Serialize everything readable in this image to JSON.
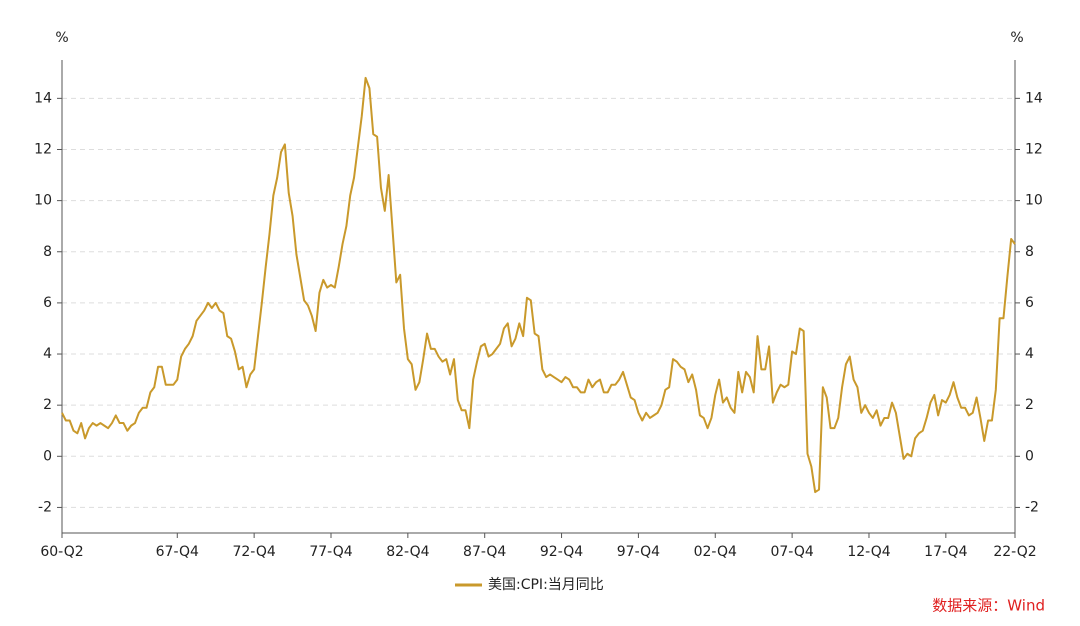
{
  "chart_data": {
    "type": "line",
    "y_unit_label": "%",
    "y2_unit_label": "%",
    "source": "数据来源：Wind",
    "categories": [
      "60-Q2",
      null,
      null,
      null,
      null,
      null,
      null,
      null,
      null,
      null,
      null,
      null,
      null,
      null,
      null,
      null,
      null,
      null,
      null,
      null,
      null,
      null,
      null,
      null,
      null,
      null,
      null,
      null,
      null,
      null,
      "67-Q4",
      null,
      null,
      null,
      null,
      null,
      null,
      null,
      null,
      null,
      null,
      null,
      null,
      null,
      null,
      null,
      null,
      null,
      null,
      null,
      "72-Q4",
      null,
      null,
      null,
      null,
      null,
      null,
      null,
      null,
      null,
      null,
      null,
      null,
      null,
      null,
      null,
      null,
      null,
      null,
      null,
      "77-Q4",
      null,
      null,
      null,
      null,
      null,
      null,
      null,
      null,
      null,
      null,
      null,
      null,
      null,
      null,
      null,
      null,
      null,
      null,
      null,
      "82-Q4",
      null,
      null,
      null,
      null,
      null,
      null,
      null,
      null,
      null,
      null,
      null,
      null,
      null,
      null,
      null,
      null,
      null,
      null,
      null,
      "87-Q4",
      null,
      null,
      null,
      null,
      null,
      null,
      null,
      null,
      null,
      null,
      null,
      null,
      null,
      null,
      null,
      null,
      null,
      null,
      null,
      "92-Q4",
      null,
      null,
      null,
      null,
      null,
      null,
      null,
      null,
      null,
      null,
      null,
      null,
      null,
      null,
      null,
      null,
      null,
      null,
      null,
      "97-Q4",
      null,
      null,
      null,
      null,
      null,
      null,
      null,
      null,
      null,
      null,
      null,
      null,
      null,
      null,
      null,
      null,
      null,
      null,
      null,
      "02-Q4",
      null,
      null,
      null,
      null,
      null,
      null,
      null,
      null,
      null,
      null,
      null,
      null,
      null,
      null,
      null,
      null,
      null,
      null,
      null,
      "07-Q4",
      null,
      null,
      null,
      null,
      null,
      null,
      null,
      null,
      null,
      null,
      null,
      null,
      null,
      null,
      null,
      null,
      null,
      null,
      null,
      "12-Q4",
      null,
      null,
      null,
      null,
      null,
      null,
      null,
      null,
      null,
      null,
      null,
      null,
      null,
      null,
      null,
      null,
      null,
      null,
      null,
      "17-Q4",
      null,
      null,
      null,
      null,
      null,
      null,
      null,
      null,
      null,
      null,
      null,
      null,
      null,
      null,
      null,
      null,
      null,
      "22-Q2"
    ],
    "series": [
      {
        "name": "美国:CPI:当月同比",
        "color": "#c9992b",
        "values": [
          1.7,
          1.4,
          1.4,
          1.0,
          0.9,
          1.3,
          0.7,
          1.1,
          1.3,
          1.2,
          1.3,
          1.2,
          1.1,
          1.3,
          1.6,
          1.3,
          1.3,
          1.0,
          1.2,
          1.3,
          1.7,
          1.9,
          1.9,
          2.5,
          2.7,
          3.5,
          3.5,
          2.8,
          2.8,
          2.8,
          3.0,
          3.9,
          4.2,
          4.4,
          4.7,
          5.3,
          5.5,
          5.7,
          6.0,
          5.8,
          6.0,
          5.7,
          5.6,
          4.7,
          4.6,
          4.1,
          3.4,
          3.5,
          2.7,
          3.2,
          3.4,
          4.7,
          6.0,
          7.4,
          8.7,
          10.2,
          10.9,
          11.9,
          12.2,
          10.3,
          9.4,
          7.9,
          7.0,
          6.1,
          5.9,
          5.5,
          4.9,
          6.4,
          6.9,
          6.6,
          6.7,
          6.6,
          7.4,
          8.3,
          9.0,
          10.2,
          10.9,
          12.1,
          13.3,
          14.8,
          14.4,
          12.6,
          12.5,
          10.5,
          9.6,
          11.0,
          8.9,
          6.8,
          7.1,
          5.0,
          3.8,
          3.6,
          2.6,
          2.9,
          3.8,
          4.8,
          4.2,
          4.2,
          3.9,
          3.7,
          3.8,
          3.2,
          3.8,
          2.2,
          1.8,
          1.8,
          1.1,
          3.0,
          3.7,
          4.3,
          4.4,
          3.9,
          4.0,
          4.2,
          4.4,
          5.0,
          5.2,
          4.3,
          4.6,
          5.2,
          4.7,
          6.2,
          6.1,
          4.8,
          4.7,
          3.4,
          3.1,
          3.2,
          3.1,
          3.0,
          2.9,
          3.1,
          3.0,
          2.7,
          2.7,
          2.5,
          2.5,
          3.0,
          2.7,
          2.9,
          3.0,
          2.5,
          2.5,
          2.8,
          2.8,
          3.0,
          3.3,
          2.8,
          2.3,
          2.2,
          1.7,
          1.4,
          1.7,
          1.5,
          1.6,
          1.7,
          2.0,
          2.6,
          2.7,
          3.8,
          3.7,
          3.5,
          3.4,
          2.9,
          3.2,
          2.6,
          1.6,
          1.5,
          1.1,
          1.5,
          2.4,
          3.0,
          2.1,
          2.3,
          1.9,
          1.7,
          3.3,
          2.5,
          3.3,
          3.1,
          2.5,
          4.7,
          3.4,
          3.4,
          4.3,
          2.1,
          2.5,
          2.8,
          2.7,
          2.8,
          4.1,
          4.0,
          5.0,
          4.9,
          0.1,
          -0.4,
          -1.4,
          -1.3,
          2.7,
          2.3,
          1.1,
          1.1,
          1.5,
          2.7,
          3.6,
          3.9,
          3.0,
          2.7,
          1.7,
          2.0,
          1.7,
          1.5,
          1.8,
          1.2,
          1.5,
          1.5,
          2.1,
          1.7,
          0.8,
          -0.1,
          0.1,
          0.0,
          0.7,
          0.9,
          1.0,
          1.5,
          2.1,
          2.4,
          1.6,
          2.2,
          2.1,
          2.4,
          2.9,
          2.3,
          1.9,
          1.9,
          1.6,
          1.7,
          2.3,
          1.5,
          0.6,
          1.4,
          1.4,
          2.6,
          5.4,
          5.4,
          7.0,
          8.5,
          8.3
        ]
      }
    ],
    "ylim": [
      -3,
      15.5
    ],
    "yticks": [
      -2,
      0,
      2,
      4,
      6,
      8,
      10,
      12,
      14
    ],
    "y2lim": [
      -3,
      15.5
    ],
    "y2ticks": [
      -2,
      0,
      2,
      4,
      6,
      8,
      10,
      12,
      14
    ],
    "grid": true,
    "legend": "bottom"
  }
}
